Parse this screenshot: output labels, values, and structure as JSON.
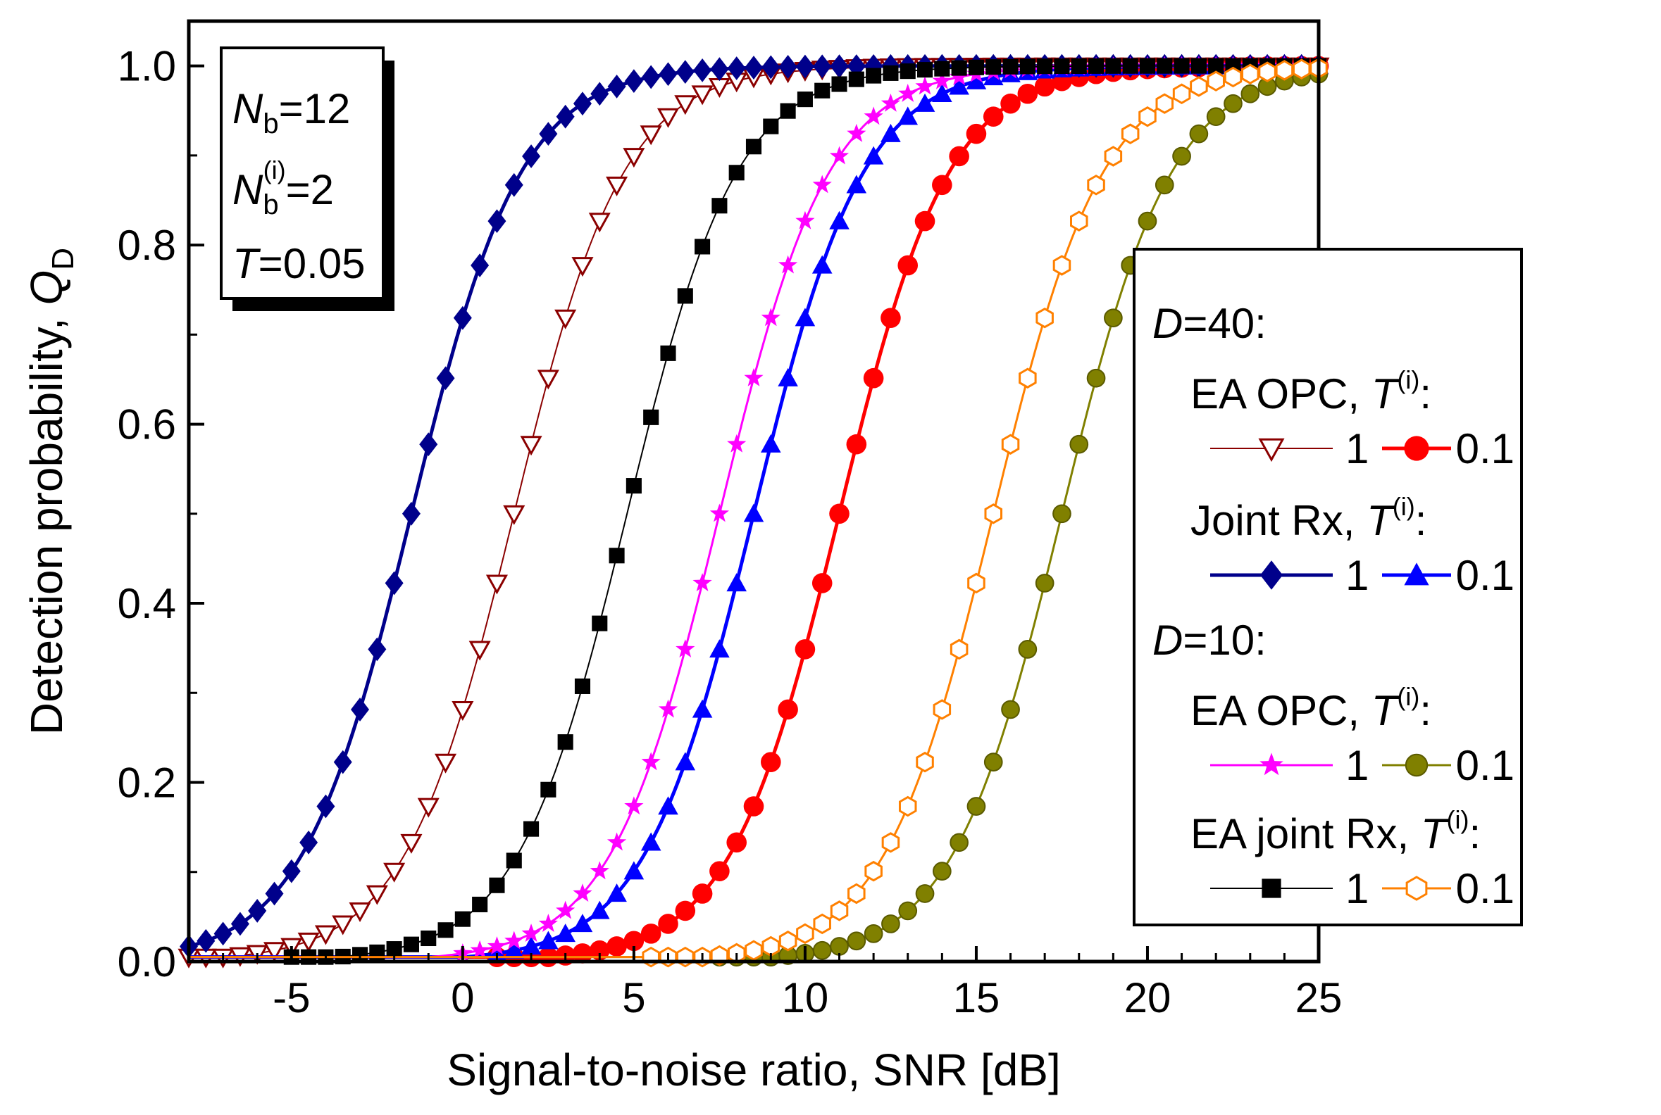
{
  "chart_data": {
    "type": "line",
    "xlabel": "Signal-to-noise ratio, SNR [dB]",
    "ylabel_main": "Detection probability, ",
    "ylabel_var": "Q",
    "ylabel_sub": "D",
    "xlim": [
      -8,
      25
    ],
    "ylim": [
      0,
      1.05
    ],
    "x_ticks": [
      -5,
      0,
      5,
      10,
      15,
      20,
      25
    ],
    "x_tick_labels": [
      "-5",
      "0",
      "5",
      "10",
      "15",
      "20",
      "25"
    ],
    "y_ticks": [
      0,
      0.2,
      0.4,
      0.6,
      0.8,
      1.0
    ],
    "y_tick_labels": [
      "0.0",
      "0.2",
      "0.4",
      "0.6",
      "0.8",
      "1.0"
    ],
    "params": {
      "nb_var": "N",
      "nb_sub": "b",
      "nb_value": "=12",
      "nbi_var": "N",
      "nbi_sub": "b",
      "nbi_sup": "(i)",
      "nbi_value": "=2",
      "t_var": "T",
      "t_value": "=0.05"
    },
    "legend": {
      "d40_var": "D",
      "d40_value": "=40:",
      "d10_var": "D",
      "d10_value": "=10:",
      "t_var": "T",
      "t_sup": "(i)",
      "colon": ":",
      "group_ea_opc": "EA OPC, ",
      "group_joint_rx": "Joint Rx, ",
      "group_ea_opc_2": "EA OPC, ",
      "group_ea_joint_rx": "EA joint Rx, ",
      "val_1": "1",
      "val_01": "0.1"
    },
    "series": [
      {
        "name": "D=40 EA OPC T(i)=1",
        "color": "#8B0000",
        "marker": "tri-down-open",
        "x0": 1.5,
        "step": 0.5,
        "slope": 0.33,
        "x_start": -8,
        "lw": 2
      },
      {
        "name": "D=40 EA OPC T(i)=0.1",
        "color": "#FF0000",
        "marker": "circle",
        "x0": 11.0,
        "step": 0.5,
        "slope": 0.33,
        "x_start": -3,
        "lw": 5
      },
      {
        "name": "D=40 Joint Rx T(i)=1",
        "color": "#00008B",
        "marker": "diamond",
        "x0": -1.5,
        "step": 0.5,
        "slope": 0.33,
        "x_start": -8,
        "lw": 5
      },
      {
        "name": "D=40 Joint Rx T(i)=0.1",
        "color": "#0000FF",
        "marker": "tri-up",
        "x0": 8.5,
        "step": 0.5,
        "slope": 0.33,
        "x_start": 1,
        "lw": 5
      },
      {
        "name": "D=10 EA OPC T(i)=1",
        "color": "#FF00FF",
        "marker": "star",
        "x0": 7.5,
        "step": 0.5,
        "slope": 0.33,
        "x_start": 0,
        "lw": 3
      },
      {
        "name": "D=10 EA OPC T(i)=0.1",
        "color": "#808000",
        "marker": "circle-olive",
        "x0": 17.5,
        "step": 0.5,
        "slope": 0.33,
        "x_start": 5,
        "lw": 3
      },
      {
        "name": "D=10 EA joint Rx T(i)=1",
        "color": "#000000",
        "marker": "square",
        "x0": 4.8,
        "step": 0.5,
        "slope": 0.33,
        "x_start": -8,
        "lw": 2
      },
      {
        "name": "D=10 EA joint Rx T(i)=0.1",
        "color": "#FF8000",
        "marker": "hex-open",
        "x0": 15.5,
        "step": 0.5,
        "slope": 0.33,
        "x_start": -8,
        "lw": 3
      }
    ]
  }
}
